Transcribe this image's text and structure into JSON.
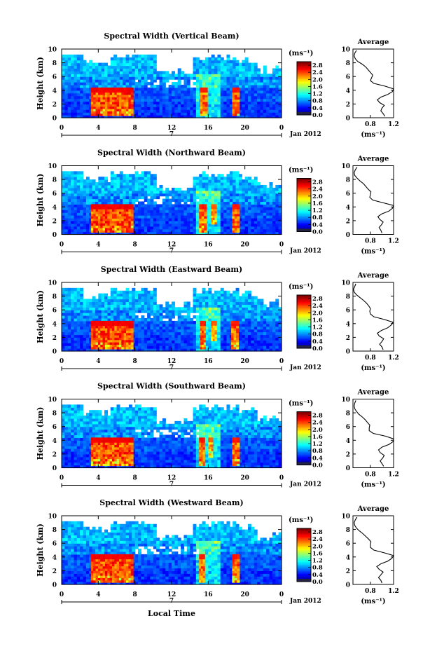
{
  "figure": {
    "xlabel_bottom": "Local Time",
    "date_label": "Jan 2012",
    "day_label": "7",
    "unit_label": "(ms⁻¹)",
    "average_title": "Average",
    "average_xlabel": "(ms⁻¹)",
    "ylabel": "Height (km)"
  },
  "chart_data": [
    {
      "type": "heatmap",
      "title": "Spectral Width (Vertical Beam)",
      "x_ticks": [
        "0",
        "4",
        "8",
        "12",
        "16",
        "20",
        "0"
      ],
      "y_ticks": [
        "0",
        "2",
        "4",
        "6",
        "8",
        "10"
      ],
      "xlim": [
        0,
        24
      ],
      "ylim": [
        0,
        10
      ],
      "colorbar": {
        "ticks": [
          "0.0",
          "0.4",
          "0.8",
          "1.2",
          "1.6",
          "2.0",
          "2.4",
          "2.8"
        ],
        "range": [
          0,
          3.0
        ]
      },
      "high_width_bands": [
        {
          "x": [
            3.2,
            7.8
          ],
          "y": [
            0.3,
            4.4
          ],
          "value": 2.7
        },
        {
          "x": [
            15.1,
            15.9
          ],
          "y": [
            0.3,
            4.4
          ],
          "value": 2.6
        },
        {
          "x": [
            18.6,
            19.4
          ],
          "y": [
            0.3,
            4.4
          ],
          "value": 2.6
        }
      ],
      "average": {
        "xlim": [
          0.5,
          1.2
        ],
        "x_ticks": [
          "0.8",
          "1.2"
        ],
        "y_ticks": [
          "0",
          "2",
          "4",
          "6",
          "8",
          "10"
        ],
        "height": [
          0.2,
          0.6,
          1.0,
          1.4,
          1.8,
          2.2,
          2.6,
          3.0,
          3.4,
          3.8,
          4.2,
          4.6,
          5.0,
          5.4,
          5.8,
          6.2,
          6.6,
          7.0,
          7.4,
          7.8,
          8.2,
          8.6,
          9.0,
          9.4,
          9.8
        ],
        "width": [
          1.05,
          1.02,
          0.98,
          1.0,
          1.04,
          0.96,
          0.92,
          0.98,
          1.1,
          1.18,
          1.22,
          1.05,
          0.86,
          0.8,
          0.82,
          0.84,
          0.8,
          0.76,
          0.72,
          0.66,
          0.58,
          0.54,
          0.52,
          0.53,
          0.56
        ]
      }
    },
    {
      "type": "heatmap",
      "title": "Spectral Width (Northward Beam)",
      "x_ticks": [
        "0",
        "4",
        "8",
        "12",
        "16",
        "20",
        "0"
      ],
      "y_ticks": [
        "0",
        "2",
        "4",
        "6",
        "8",
        "10"
      ],
      "xlim": [
        0,
        24
      ],
      "ylim": [
        0,
        10
      ],
      "colorbar": {
        "ticks": [
          "0.0",
          "0.4",
          "0.8",
          "1.2",
          "1.6",
          "2.0",
          "2.4",
          "2.8"
        ],
        "range": [
          0,
          3.0
        ]
      },
      "high_width_bands": [
        {
          "x": [
            3.2,
            7.8
          ],
          "y": [
            0.3,
            4.4
          ],
          "value": 2.7
        },
        {
          "x": [
            15.0,
            15.8
          ],
          "y": [
            0.3,
            4.4
          ],
          "value": 2.6
        },
        {
          "x": [
            16.3,
            16.9
          ],
          "y": [
            1.5,
            4.4
          ],
          "value": 2.4
        },
        {
          "x": [
            18.6,
            19.4
          ],
          "y": [
            0.3,
            4.4
          ],
          "value": 2.6
        }
      ],
      "average": {
        "xlim": [
          0.5,
          1.2
        ],
        "x_ticks": [
          "0.8",
          "1.2"
        ],
        "y_ticks": [
          "0",
          "2",
          "4",
          "6",
          "8",
          "10"
        ],
        "height": [
          0.2,
          0.6,
          1.0,
          1.4,
          1.8,
          2.2,
          2.6,
          3.0,
          3.4,
          3.8,
          4.2,
          4.6,
          5.0,
          5.4,
          5.8,
          6.2,
          6.6,
          7.0,
          7.4,
          7.8,
          8.2,
          8.6,
          9.0,
          9.4,
          9.8
        ],
        "width": [
          1.0,
          0.98,
          0.95,
          0.99,
          1.02,
          0.96,
          0.93,
          1.0,
          1.12,
          1.18,
          1.2,
          1.02,
          0.84,
          0.79,
          0.8,
          0.81,
          0.76,
          0.72,
          0.68,
          0.62,
          0.57,
          0.53,
          0.52,
          0.54,
          0.57
        ]
      }
    },
    {
      "type": "heatmap",
      "title": "Spectral Width (Eastward Beam)",
      "x_ticks": [
        "0",
        "4",
        "8",
        "12",
        "16",
        "20",
        "0"
      ],
      "y_ticks": [
        "0",
        "2",
        "4",
        "6",
        "8",
        "10"
      ],
      "xlim": [
        0,
        24
      ],
      "ylim": [
        0,
        10
      ],
      "colorbar": {
        "ticks": [
          "0.0",
          "0.4",
          "0.8",
          "1.2",
          "1.6",
          "2.0",
          "2.4",
          "2.8"
        ],
        "range": [
          0,
          3.0
        ]
      },
      "high_width_bands": [
        {
          "x": [
            3.2,
            7.8
          ],
          "y": [
            0.3,
            4.4
          ],
          "value": 2.7
        },
        {
          "x": [
            15.1,
            15.7
          ],
          "y": [
            0.3,
            4.4
          ],
          "value": 2.6
        },
        {
          "x": [
            16.3,
            16.9
          ],
          "y": [
            1.5,
            4.4
          ],
          "value": 2.4
        },
        {
          "x": [
            18.5,
            19.3
          ],
          "y": [
            0.3,
            4.4
          ],
          "value": 2.6
        }
      ],
      "average": {
        "xlim": [
          0.5,
          1.2
        ],
        "x_ticks": [
          "0.8",
          "1.2"
        ],
        "y_ticks": [
          "0",
          "2",
          "4",
          "6",
          "8",
          "10"
        ],
        "height": [
          0.2,
          0.6,
          1.0,
          1.4,
          1.8,
          2.2,
          2.6,
          3.0,
          3.4,
          3.8,
          4.2,
          4.6,
          5.0,
          5.4,
          5.8,
          6.2,
          6.6,
          7.0,
          7.4,
          7.8,
          8.2,
          8.6,
          9.0,
          9.4,
          9.8
        ],
        "width": [
          1.02,
          1.0,
          0.96,
          1.0,
          1.03,
          0.95,
          0.92,
          0.99,
          1.1,
          1.16,
          1.19,
          1.04,
          0.86,
          0.8,
          0.79,
          0.8,
          0.77,
          0.73,
          0.68,
          0.62,
          0.56,
          0.52,
          0.51,
          0.53,
          0.55
        ]
      }
    },
    {
      "type": "heatmap",
      "title": "Spectral Width (Southward Beam)",
      "x_ticks": [
        "0",
        "4",
        "8",
        "12",
        "16",
        "20",
        "0"
      ],
      "y_ticks": [
        "0",
        "2",
        "4",
        "6",
        "8",
        "10"
      ],
      "xlim": [
        0,
        24
      ],
      "ylim": [
        0,
        10
      ],
      "colorbar": {
        "ticks": [
          "0.0",
          "0.4",
          "0.8",
          "1.2",
          "1.6",
          "2.0",
          "2.4",
          "2.8"
        ],
        "range": [
          0,
          3.0
        ]
      },
      "high_width_bands": [
        {
          "x": [
            3.2,
            7.8
          ],
          "y": [
            0.3,
            4.4
          ],
          "value": 2.7
        },
        {
          "x": [
            15.0,
            15.6
          ],
          "y": [
            0.3,
            4.4
          ],
          "value": 2.6
        },
        {
          "x": [
            16.0,
            16.5
          ],
          "y": [
            1.5,
            4.4
          ],
          "value": 2.4
        },
        {
          "x": [
            18.6,
            19.4
          ],
          "y": [
            0.3,
            4.4
          ],
          "value": 2.6
        }
      ],
      "average": {
        "xlim": [
          0.5,
          1.2
        ],
        "x_ticks": [
          "0.8",
          "1.2"
        ],
        "y_ticks": [
          "0",
          "2",
          "4",
          "6",
          "8",
          "10"
        ],
        "height": [
          0.2,
          0.6,
          1.0,
          1.4,
          1.8,
          2.2,
          2.6,
          3.0,
          3.4,
          3.8,
          4.2,
          4.6,
          5.0,
          5.4,
          5.8,
          6.2,
          6.6,
          7.0,
          7.4,
          7.8,
          8.2,
          8.6,
          9.0,
          9.4,
          9.8
        ],
        "width": [
          1.03,
          1.0,
          0.97,
          1.01,
          1.04,
          0.97,
          0.94,
          1.0,
          1.12,
          1.19,
          1.21,
          1.06,
          0.85,
          0.78,
          0.78,
          0.79,
          0.75,
          0.71,
          0.66,
          0.6,
          0.56,
          0.53,
          0.52,
          0.53,
          0.55
        ]
      }
    },
    {
      "type": "heatmap",
      "title": "Spectral Width (Westward Beam)",
      "x_ticks": [
        "0",
        "4",
        "8",
        "12",
        "16",
        "20",
        "0"
      ],
      "y_ticks": [
        "0",
        "2",
        "4",
        "6",
        "8",
        "10"
      ],
      "xlim": [
        0,
        24
      ],
      "ylim": [
        0,
        10
      ],
      "colorbar": {
        "ticks": [
          "0.0",
          "0.4",
          "0.8",
          "1.2",
          "1.6",
          "2.0",
          "2.4",
          "2.8"
        ],
        "range": [
          0,
          3.0
        ]
      },
      "high_width_bands": [
        {
          "x": [
            3.2,
            7.8
          ],
          "y": [
            0.3,
            4.4
          ],
          "value": 2.7
        },
        {
          "x": [
            15.0,
            15.6
          ],
          "y": [
            0.3,
            4.4
          ],
          "value": 2.6
        },
        {
          "x": [
            18.6,
            19.4
          ],
          "y": [
            0.3,
            4.4
          ],
          "value": 2.6
        }
      ],
      "average": {
        "xlim": [
          0.5,
          1.2
        ],
        "x_ticks": [
          "0.8",
          "1.2"
        ],
        "y_ticks": [
          "0",
          "2",
          "4",
          "6",
          "8",
          "10"
        ],
        "height": [
          0.2,
          0.6,
          1.0,
          1.4,
          1.8,
          2.2,
          2.6,
          3.0,
          3.4,
          3.8,
          4.2,
          4.6,
          5.0,
          5.4,
          5.8,
          6.2,
          6.6,
          7.0,
          7.4,
          7.8,
          8.2,
          8.6,
          9.0,
          9.4,
          9.8
        ],
        "width": [
          1.0,
          0.98,
          0.94,
          0.98,
          1.02,
          0.95,
          0.91,
          0.98,
          1.1,
          1.17,
          1.2,
          1.04,
          0.86,
          0.8,
          0.8,
          0.81,
          0.77,
          0.72,
          0.67,
          0.61,
          0.56,
          0.53,
          0.52,
          0.54,
          0.57
        ]
      }
    }
  ]
}
